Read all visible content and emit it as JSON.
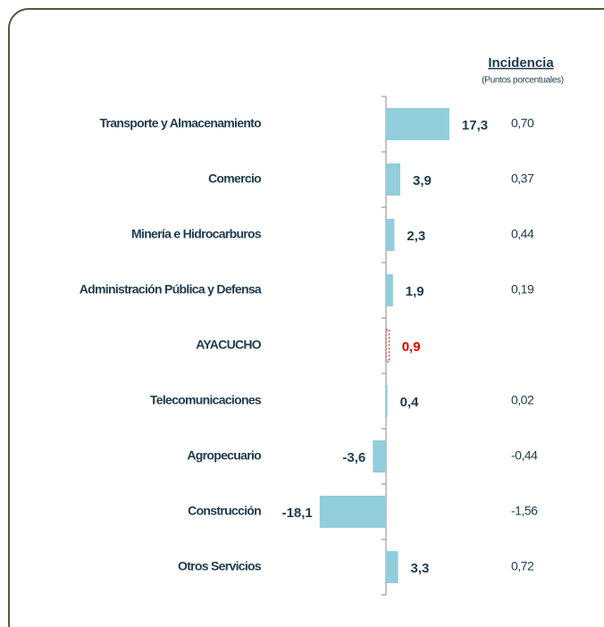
{
  "chart_data": {
    "type": "bar",
    "orientation": "horizontal",
    "header": "Incidencia",
    "subheader": "(Puntos porcentuales)",
    "categories": [
      "Transporte y Almacenamiento",
      "Comercio",
      "Minería e Hidrocarburos",
      "Administración Pública y Defensa",
      "AYACUCHO",
      "Telecomunicaciones",
      "Agropecuario",
      "Construcción",
      "Otros Servicios"
    ],
    "values": [
      17.3,
      3.9,
      2.3,
      1.9,
      0.9,
      0.4,
      -3.6,
      -18.1,
      3.3
    ],
    "value_labels": [
      "17,3",
      "3,9",
      "2,3",
      "1,9",
      "0,9",
      "0,4",
      "-3,6",
      "-18,1",
      "3,3"
    ],
    "incidence": {
      "values": [
        0.7,
        0.37,
        0.44,
        0.19,
        null,
        0.02,
        -0.44,
        -1.56,
        0.72
      ],
      "labels": [
        "0,70",
        "0,37",
        "0,44",
        "0,19",
        null,
        "0,02",
        "-0,44",
        "-1,56",
        "0,72"
      ]
    },
    "color": "#92cddc",
    "highlight_index": 4,
    "highlight_color": "#e00000"
  }
}
